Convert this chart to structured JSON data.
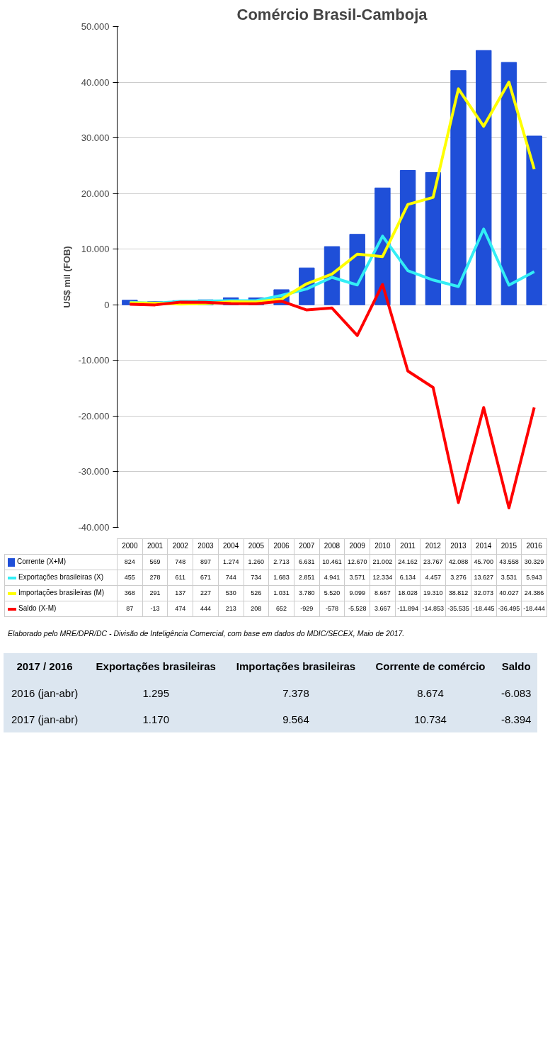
{
  "chart_data": [
    {
      "type": "bar",
      "title": "Comércio Brasil-Camboja",
      "ylabel": "US$ mil (FOB)",
      "categories": [
        "2000",
        "2001",
        "2002",
        "2003",
        "2004",
        "2005",
        "2006",
        "2007",
        "2008",
        "2009",
        "2010",
        "2011",
        "2012",
        "2013",
        "2014",
        "2015",
        "2016"
      ],
      "series": [
        {
          "name": "Corrente (X+M)",
          "color": "#1f4fd8",
          "values": [
            824,
            569,
            748,
            897,
            1274,
            1260,
            2713,
            6631,
            10461,
            12670,
            21002,
            24162,
            23767,
            42088,
            45700,
            43558,
            30329
          ],
          "value_labels": [
            "824",
            "569",
            "748",
            "897",
            "1.274",
            "1.260",
            "2.713",
            "6.631",
            "10.461",
            "12.670",
            "21.002",
            "24.162",
            "23.767",
            "42.088",
            "45.700",
            "43.558",
            "30.329"
          ]
        },
        {
          "name": "Exportações brasileiras (X)",
          "type": "line",
          "color": "#33eef5",
          "values": [
            455,
            278,
            611,
            671,
            744,
            734,
            1683,
            2851,
            4941,
            3571,
            12334,
            6134,
            4457,
            3276,
            13627,
            3531,
            5943
          ],
          "value_labels": [
            "455",
            "278",
            "611",
            "671",
            "744",
            "734",
            "1.683",
            "2.851",
            "4.941",
            "3.571",
            "12.334",
            "6.134",
            "4.457",
            "3.276",
            "13.627",
            "3.531",
            "5.943"
          ]
        },
        {
          "name": "Importações brasileiras (M)",
          "type": "line",
          "color": "#ffff00",
          "values": [
            368,
            291,
            137,
            227,
            530,
            526,
            1031,
            3780,
            5520,
            9099,
            8667,
            18028,
            19310,
            38812,
            32073,
            40027,
            24386
          ],
          "value_labels": [
            "368",
            "291",
            "137",
            "227",
            "530",
            "526",
            "1.031",
            "3.780",
            "5.520",
            "9.099",
            "8.667",
            "18.028",
            "19.310",
            "38.812",
            "32.073",
            "40.027",
            "24.386"
          ]
        },
        {
          "name": "Saldo (X-M)",
          "type": "line",
          "color": "#ff0000",
          "values": [
            87,
            -13,
            474,
            444,
            213,
            208,
            652,
            -929,
            -578,
            -5528,
            3667,
            -11894,
            -14853,
            -35535,
            -18445,
            -36495,
            -18444
          ],
          "value_labels": [
            "87",
            "-13",
            "474",
            "444",
            "213",
            "208",
            "652",
            "-929",
            "-578",
            "-5.528",
            "3.667",
            "-11.894",
            "-14.853",
            "-35.535",
            "-18.445",
            "-36.495",
            "-18.444"
          ]
        }
      ],
      "ylim": [
        -40000,
        50000
      ],
      "yticks": [
        {
          "value": -40000,
          "label": "-40.000"
        },
        {
          "value": -30000,
          "label": "-30.000"
        },
        {
          "value": -20000,
          "label": "-20.000"
        },
        {
          "value": -10000,
          "label": "-10.000"
        },
        0,
        {
          "value": 10000,
          "label": "10.000"
        },
        {
          "value": 20000,
          "label": "20.000"
        },
        {
          "value": 30000,
          "label": "30.000"
        },
        {
          "value": 40000,
          "label": "40.000"
        },
        {
          "value": 50000,
          "label": "50.000"
        }
      ],
      "grid": "y",
      "legend": "bottom",
      "tick_labels": "y",
      "marker": "none",
      "line_style": "solid",
      "annotations": [
        "Elaborado pelo MRE/DPR/DC - Divisão de Inteligência Comercial, com base em dados do MDIC/SECEX, Maio de 2017."
      ]
    },
    {
      "type": "other",
      "title": "2017 / 2016",
      "categories": [
        "Exportações brasileiras",
        "Importações brasileiras",
        "Corrente de comércio",
        "Saldo"
      ],
      "y_categories": [
        "2016 (jan-abr)",
        "2017 (jan-abr)"
      ],
      "cell_labels": [
        [
          "1.295",
          "7.378",
          "8.674",
          "-6.083"
        ],
        [
          "1.170",
          "9.564",
          "10.734",
          "-8.394"
        ]
      ]
    }
  ]
}
